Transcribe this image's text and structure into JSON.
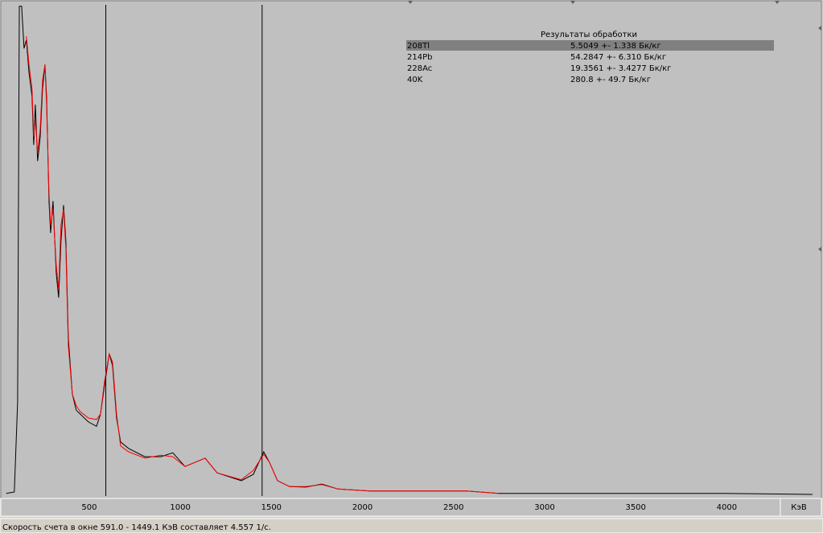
{
  "chart_data": {
    "type": "line",
    "x": [
      45,
      89,
      107,
      116,
      129,
      142,
      155,
      169,
      186,
      195,
      204,
      217,
      231,
      244,
      257,
      266,
      279,
      288,
      301,
      319,
      332,
      345,
      359,
      372,
      385,
      407,
      429,
      451,
      496,
      540,
      562,
      584,
      610,
      628,
      650,
      672,
      716,
      805,
      893,
      959,
      1026,
      1136,
      1202,
      1335,
      1401,
      1458,
      1489,
      1534,
      1600,
      1688,
      1777,
      1865,
      2042,
      2218,
      2572,
      2748,
      3102,
      3543,
      3985,
      4471
    ],
    "series": [
      {
        "color": "#000000",
        "values": [
          0.2,
          0.5,
          18.9,
          99.7,
          99.7,
          91.1,
          92.8,
          86.2,
          81.3,
          71.4,
          79.6,
          68.1,
          73.1,
          82.9,
          87.8,
          81.3,
          59.9,
          53.4,
          59.9,
          45.2,
          40.2,
          51.7,
          59.1,
          51.7,
          32.0,
          20.5,
          17.2,
          16.4,
          14.8,
          13.9,
          16.4,
          22.2,
          28.7,
          26.3,
          15.6,
          10.7,
          9.4,
          7.7,
          7.7,
          8.5,
          5.7,
          7.4,
          4.4,
          2.8,
          4.1,
          8.7,
          6.6,
          2.8,
          1.6,
          1.5,
          2.1,
          1.1,
          0.7,
          0.7,
          0.7,
          0.2,
          0.2,
          0.2,
          0.2,
          0
        ]
      },
      {
        "color": "#ff0000",
        "values": [
          null,
          null,
          null,
          null,
          null,
          null,
          93.6,
          87.8,
          82.9,
          73.1,
          76.4,
          69.8,
          74.7,
          84.6,
          87.8,
          79.6,
          61.6,
          55.0,
          58.3,
          46.8,
          41.9,
          55.0,
          58.3,
          50.1,
          30.4,
          20.5,
          18.1,
          16.9,
          15.6,
          15.3,
          16.4,
          23.0,
          28.7,
          27.1,
          16.4,
          9.9,
          8.7,
          7.4,
          8.0,
          7.7,
          5.7,
          7.4,
          4.4,
          3.0,
          4.9,
          8.2,
          6.6,
          2.8,
          1.6,
          1.6,
          2.0,
          1.1,
          0.7,
          0.7,
          0.7,
          0.2,
          null,
          null,
          null,
          null
        ]
      }
    ],
    "xlim": [
      19,
      4515
    ],
    "ylim": [
      0,
      100
    ],
    "xticks": [
      500,
      1000,
      1500,
      2000,
      2500,
      3000,
      3500,
      4000
    ],
    "x_label": "КэВ",
    "markers": [
      591.0,
      1449.1
    ]
  },
  "results_table": {
    "title": "Результаты обработки",
    "selected_row": 0,
    "rows": [
      [
        "208Tl",
        "5.5049 +- 1.338 Бк/кг"
      ],
      [
        "214Pb",
        "54.2847 +- 6.310 Бк/кг"
      ],
      [
        "228Ac",
        "19.3561 +- 3.4277 Бк/кг"
      ],
      [
        "40K",
        "280.8 +- 49.7 Бк/кг"
      ]
    ]
  },
  "status_bar": "Скорость счета в окне 591.0 - 1449.1 КэВ составляет 4.557 1/с."
}
